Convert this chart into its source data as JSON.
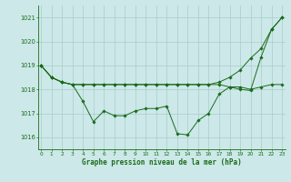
{
  "xlabel": "Graphe pression niveau de la mer (hPa)",
  "bg_color": "#cce8e8",
  "grid_color": "#aacccc",
  "line_color": "#1a6b1a",
  "ylim": [
    1015.5,
    1021.5
  ],
  "yticks": [
    1016,
    1017,
    1018,
    1019,
    1020,
    1021
  ],
  "line1": [
    1019.0,
    1018.5,
    1018.3,
    1018.2,
    1018.2,
    1018.2,
    1018.2,
    1018.2,
    1018.2,
    1018.2,
    1018.2,
    1018.2,
    1018.2,
    1018.2,
    1018.2,
    1018.2,
    1018.2,
    1018.2,
    1018.1,
    1018.1,
    1018.0,
    1018.1,
    1018.2,
    1018.2
  ],
  "line2": [
    1019.0,
    1018.5,
    1018.3,
    1018.2,
    1017.5,
    1016.65,
    1017.1,
    1016.9,
    1016.9,
    1017.1,
    1017.2,
    1017.2,
    1017.3,
    1016.15,
    1016.1,
    1016.7,
    1017.0,
    1017.8,
    1018.1,
    1018.0,
    1017.95,
    1019.35,
    1020.5,
    1021.0
  ],
  "line3": [
    1019.0,
    1018.5,
    1018.3,
    1018.2,
    1018.2,
    1018.2,
    1018.2,
    1018.2,
    1018.2,
    1018.2,
    1018.2,
    1018.2,
    1018.2,
    1018.2,
    1018.2,
    1018.2,
    1018.2,
    1018.3,
    1018.5,
    1018.8,
    1019.3,
    1019.7,
    1020.5,
    1021.0
  ]
}
